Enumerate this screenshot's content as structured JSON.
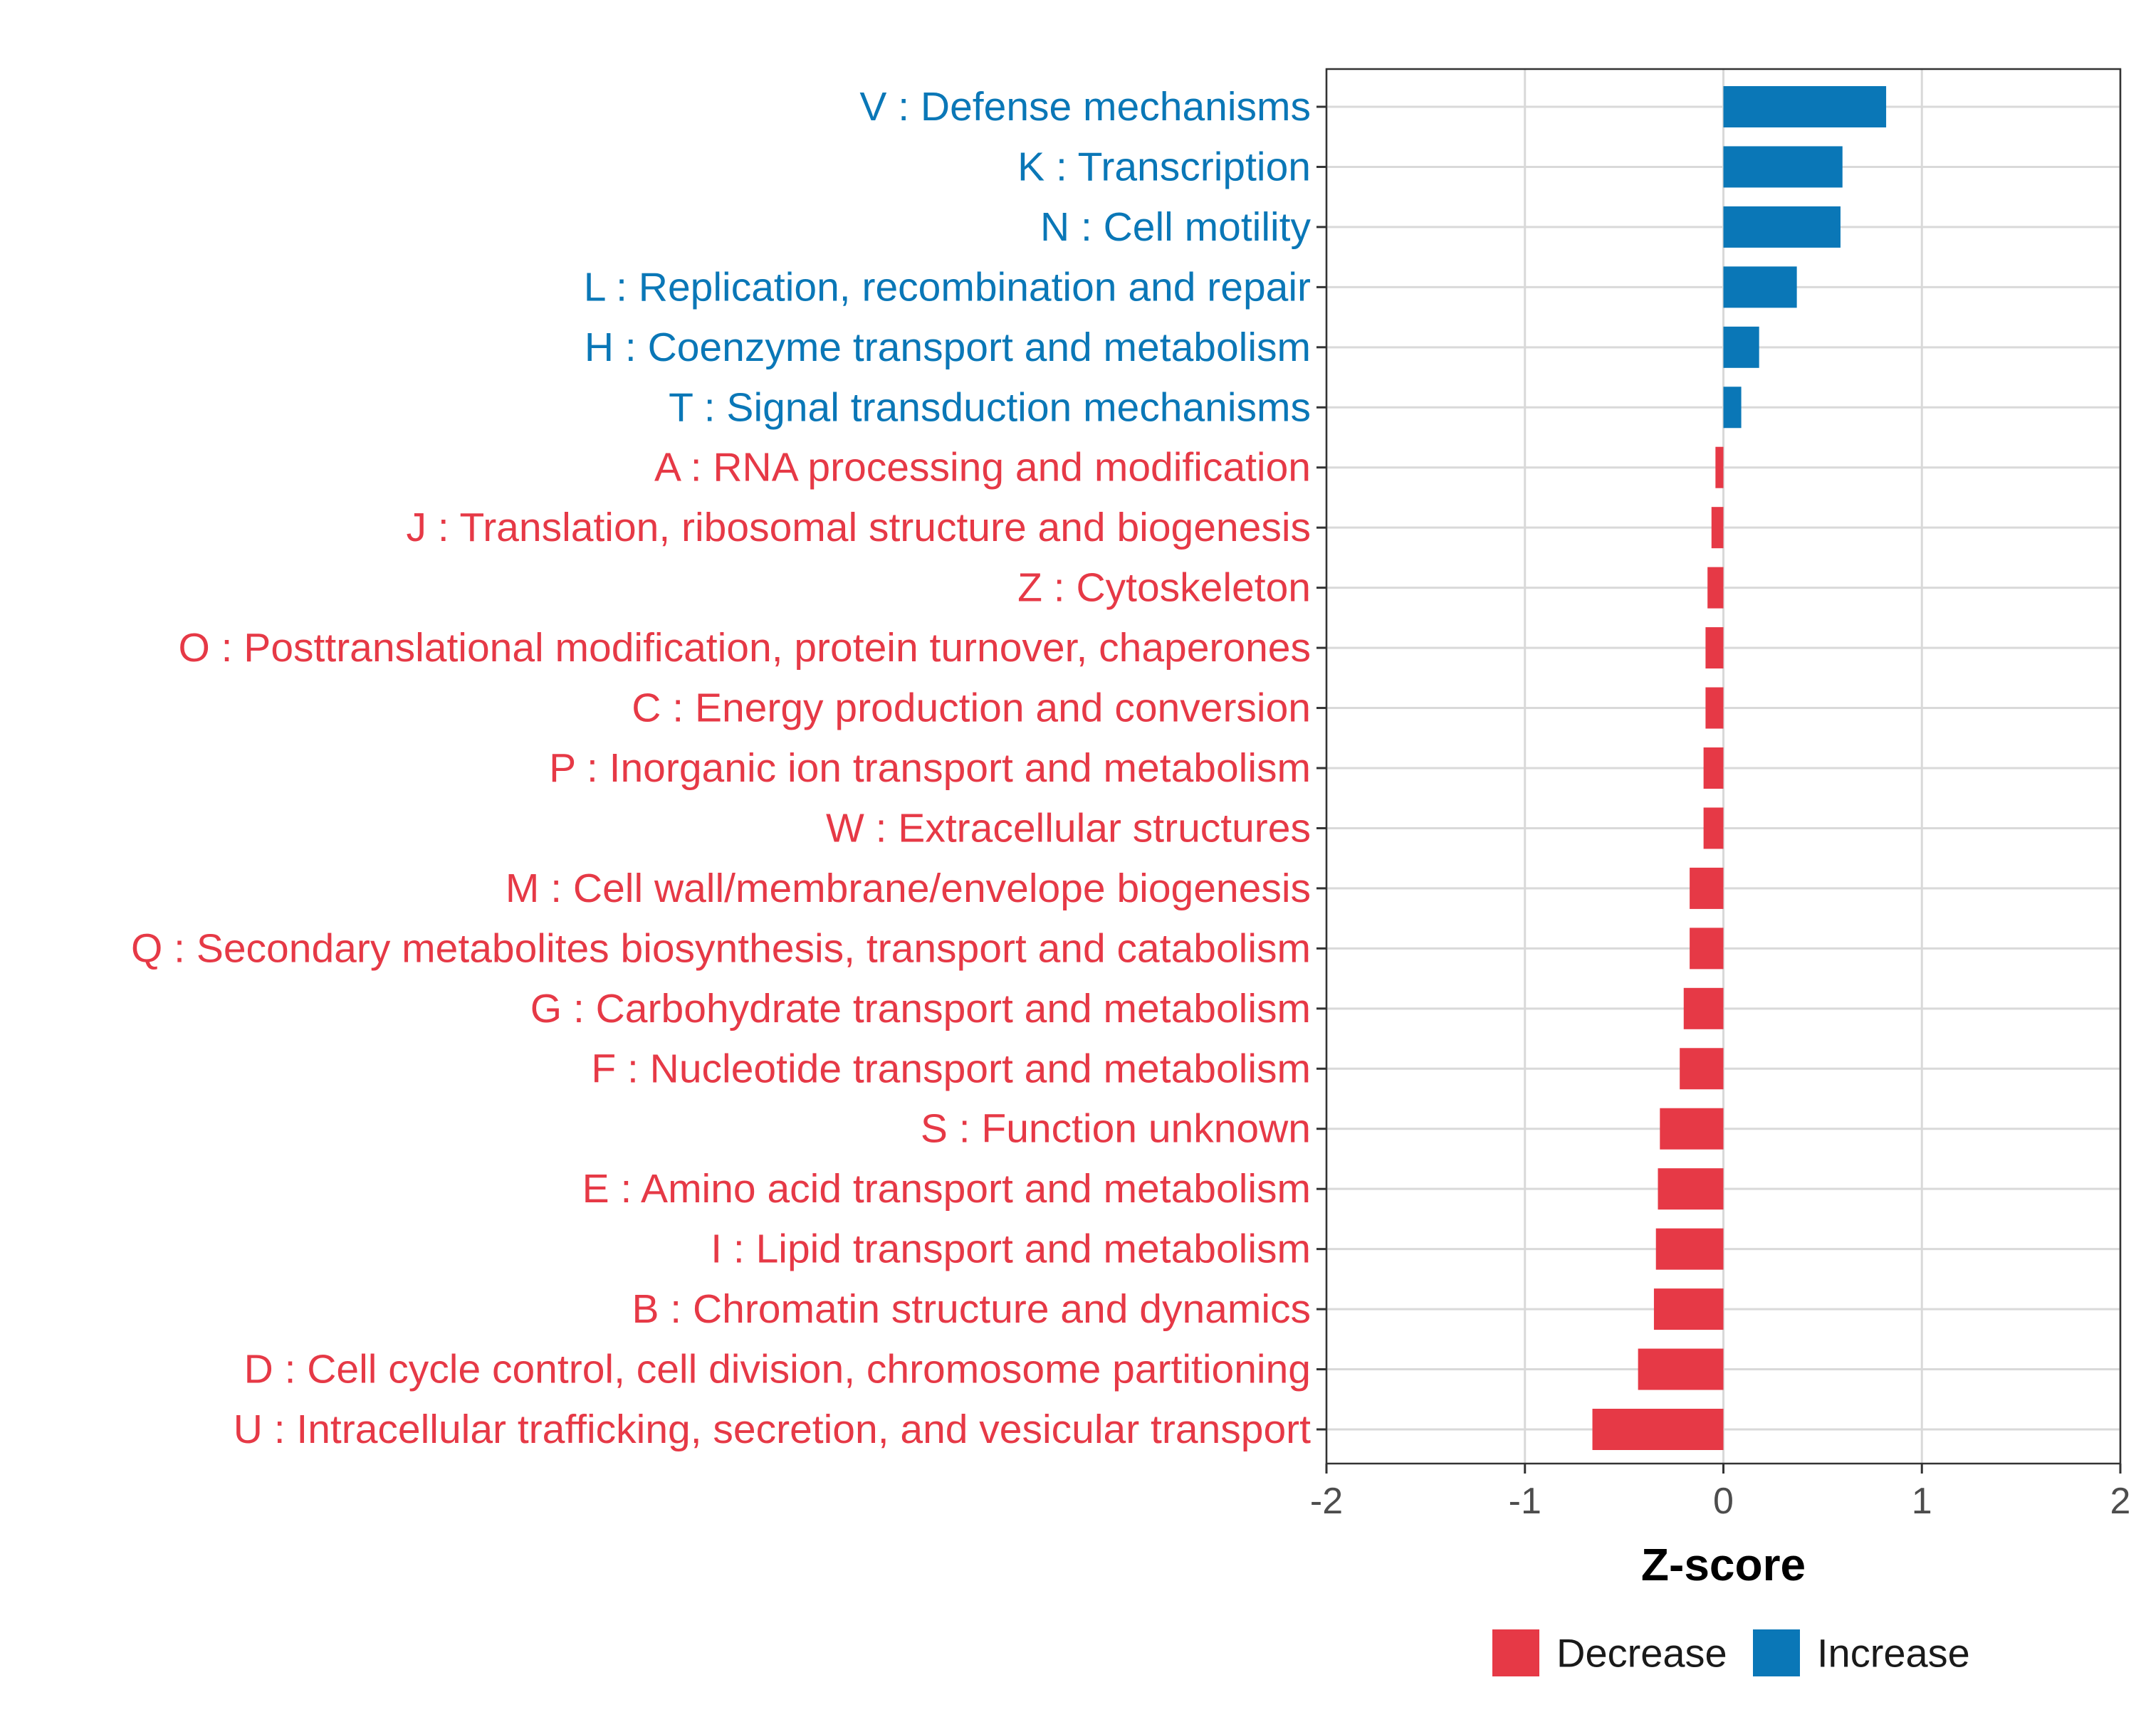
{
  "colors": {
    "increase": "#0a77b7",
    "decrease": "#e63946",
    "grid": "#d9d9d9",
    "axis": "#333333"
  },
  "chart_data": {
    "type": "bar",
    "orientation": "horizontal",
    "xlabel": "Z-score",
    "ylabel": "",
    "xlim": [
      -2,
      2
    ],
    "xticks": [
      "-2",
      "-1",
      "0",
      "1",
      "2"
    ],
    "grid": true,
    "legend": {
      "position": "bottom",
      "entries": [
        {
          "label": "Decrease",
          "color_key": "decrease"
        },
        {
          "label": "Increase",
          "color_key": "increase"
        }
      ]
    },
    "categories": [
      "V : Defense mechanisms",
      "K : Transcription",
      "N : Cell motility",
      "L : Replication, recombination and repair",
      "H : Coenzyme transport and metabolism",
      "T : Signal transduction mechanisms",
      "A : RNA processing and modification",
      "J : Translation, ribosomal structure and biogenesis",
      "Z : Cytoskeleton",
      "O : Posttranslational modification, protein turnover, chaperones",
      "C : Energy production and conversion",
      "P : Inorganic ion transport and metabolism",
      "W : Extracellular structures",
      "M : Cell wall/membrane/envelope biogenesis",
      "Q : Secondary metabolites biosynthesis, transport and catabolism",
      "G : Carbohydrate transport and metabolism",
      "F : Nucleotide transport and metabolism",
      "S : Function unknown",
      "E : Amino acid transport and metabolism",
      "I : Lipid transport and metabolism",
      "B : Chromatin structure and dynamics",
      "D : Cell cycle control, cell division, chromosome partitioning",
      "U : Intracellular trafficking, secretion, and vesicular transport"
    ],
    "values": [
      0.82,
      0.6,
      0.59,
      0.37,
      0.18,
      0.09,
      -0.04,
      -0.06,
      -0.08,
      -0.09,
      -0.09,
      -0.1,
      -0.1,
      -0.17,
      -0.17,
      -0.2,
      -0.22,
      -0.32,
      -0.33,
      -0.34,
      -0.35,
      -0.43,
      -0.66
    ]
  }
}
